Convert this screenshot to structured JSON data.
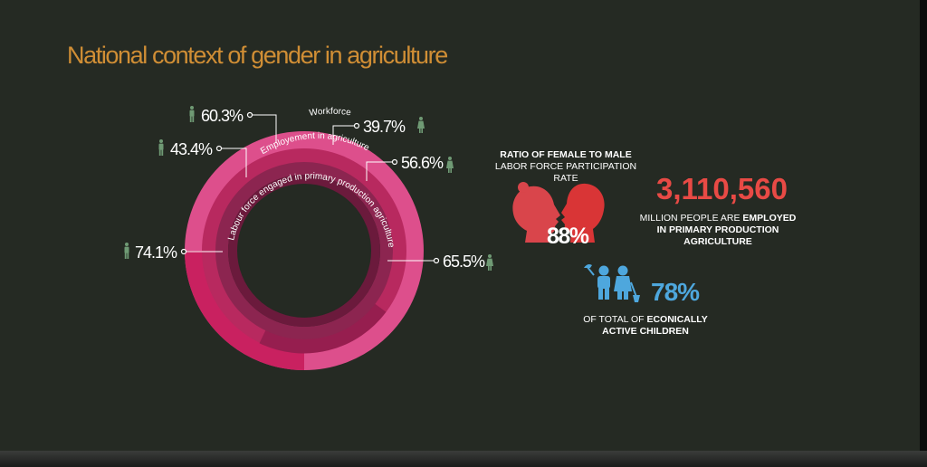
{
  "title": "National context of gender in agriculture",
  "colors": {
    "background": "#252a23",
    "title": "#d08e35",
    "ring_outer": "#dd4f8c",
    "ring_middle": "#b8295f",
    "ring_inner": "#7a1f45",
    "female_highlight": "#c92160",
    "accent_red": "#e84a45",
    "accent_blue": "#4ea7dd",
    "icon_green": "#6f9a74"
  },
  "chart_data": {
    "type": "donut",
    "rings": [
      {
        "label": "Workforce",
        "male": 60.3,
        "female": 39.7
      },
      {
        "label": "Employement in agriculture",
        "male": 43.4,
        "female": 56.6
      },
      {
        "label": "Labour force engaged in primary production agriculture",
        "male": 74.1,
        "female": 65.5
      }
    ],
    "value_labels": {
      "workforce_male": "60.3%",
      "workforce_female": "39.7%",
      "employment_male": "43.4%",
      "employment_female": "56.6%",
      "labour_male": "74.1%",
      "labour_female": "65.5%"
    }
  },
  "ratio": {
    "title": "RATIO OF FEMALE TO MALE",
    "line2": "LABOR FORCE PARTICIPATION",
    "line3": "RATE",
    "value": "88%"
  },
  "employed": {
    "value": "3,110,560",
    "line1_normal": "MILLION PEOPLE ARE ",
    "line1_bold": "EMPLOYED",
    "line2": "IN PRIMARY PRODUCTION",
    "line3": "AGRICULTURE"
  },
  "children": {
    "value": "78%",
    "line1_normal": "OF TOTAL OF ",
    "line1_bold": "ECONICALLY",
    "line2": "ACTIVE CHILDREN"
  },
  "icons": [
    "male-person-icon",
    "female-person-icon",
    "female-head-icon",
    "male-head-icon",
    "children-icon"
  ]
}
